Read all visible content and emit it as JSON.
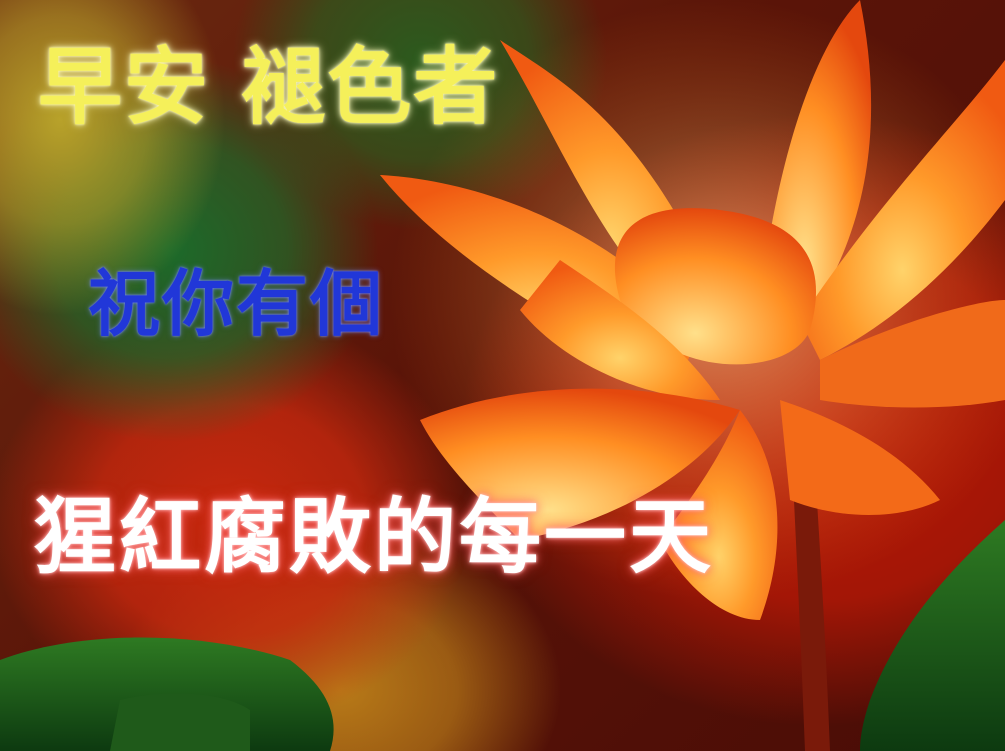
{
  "greeting": {
    "line1": "早安 褪色者",
    "line2": "祝你有個",
    "line3": "猩紅腐敗的每一天"
  },
  "colors": {
    "line1": "#f5f05a",
    "line2": "#2137d8",
    "line3": "#ffffff",
    "lotus": "#ff8a1e"
  }
}
